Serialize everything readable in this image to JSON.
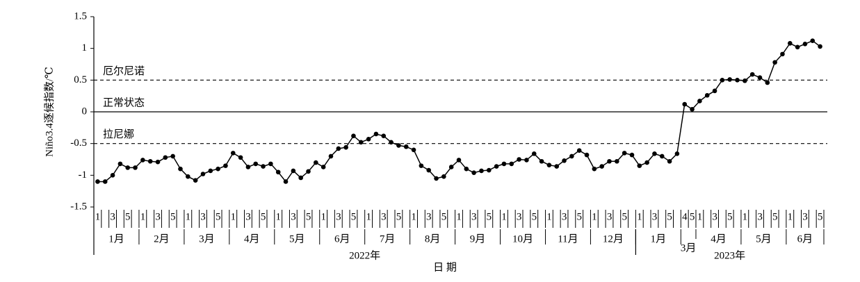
{
  "chart_data": {
    "type": "line",
    "y_label": "Niño3.4逐候指数/℃",
    "x_label": "日 期",
    "ylim": [
      -1.5,
      1.5
    ],
    "yticks": [
      1.5,
      1,
      0.5,
      0,
      -0.5,
      -1,
      -1.5
    ],
    "color": "#000000",
    "reference_lines": [
      {
        "value": 0.5,
        "label": "厄尔尼诺",
        "style": "dashed"
      },
      {
        "value": 0,
        "label": "正常状态",
        "style": "solid"
      },
      {
        "value": -0.5,
        "label": "拉尼娜",
        "style": "dashed"
      }
    ],
    "years": [
      {
        "label": "2022年",
        "months": [
          {
            "label": "1月",
            "weeks": [
              "1",
              null,
              "3",
              null,
              "5",
              null
            ]
          },
          {
            "label": "2月",
            "weeks": [
              "1",
              null,
              "3",
              null,
              "5",
              null
            ]
          },
          {
            "label": "3月",
            "weeks": [
              "1",
              null,
              "3",
              null,
              "5",
              null
            ]
          },
          {
            "label": "4月",
            "weeks": [
              "1",
              null,
              "3",
              null,
              "5",
              null
            ]
          },
          {
            "label": "5月",
            "weeks": [
              "1",
              null,
              "3",
              null,
              "5",
              null
            ]
          },
          {
            "label": "6月",
            "weeks": [
              "1",
              null,
              "3",
              null,
              "5",
              null
            ]
          },
          {
            "label": "7月",
            "weeks": [
              "1",
              null,
              "3",
              null,
              "5",
              null
            ]
          },
          {
            "label": "8月",
            "weeks": [
              "1",
              null,
              "3",
              null,
              "5",
              null
            ]
          },
          {
            "label": "9月",
            "weeks": [
              "1",
              null,
              "3",
              null,
              "5",
              null
            ]
          },
          {
            "label": "10月",
            "weeks": [
              "1",
              null,
              "3",
              null,
              "5",
              null
            ]
          },
          {
            "label": "11月",
            "weeks": [
              "1",
              null,
              "3",
              null,
              "5",
              null
            ]
          },
          {
            "label": "12月",
            "weeks": [
              "1",
              null,
              "3",
              null,
              "5",
              null
            ]
          }
        ]
      },
      {
        "label": "2023年",
        "months": [
          {
            "label": "1月",
            "weeks": [
              "1",
              null,
              "3",
              null,
              "5",
              null
            ]
          },
          {
            "label": "3月",
            "weeks": [
              "4",
              "5"
            ]
          },
          {
            "label": "4月",
            "weeks": [
              "1",
              null,
              "3",
              null,
              "5",
              null
            ]
          },
          {
            "label": "5月",
            "weeks": [
              "1",
              null,
              "3",
              null,
              "5",
              null
            ]
          },
          {
            "label": "6月",
            "weeks": [
              "1",
              null,
              "3",
              null,
              "5"
            ]
          }
        ]
      }
    ],
    "values": [
      -1.1,
      -1.1,
      -1.0,
      -0.82,
      -0.88,
      -0.88,
      -0.76,
      -0.78,
      -0.79,
      -0.72,
      -0.7,
      -0.9,
      -1.02,
      -1.08,
      -0.98,
      -0.93,
      -0.9,
      -0.85,
      -0.65,
      -0.72,
      -0.87,
      -0.82,
      -0.86,
      -0.82,
      -0.95,
      -1.1,
      -0.93,
      -1.04,
      -0.94,
      -0.8,
      -0.87,
      -0.7,
      -0.58,
      -0.56,
      -0.38,
      -0.48,
      -0.43,
      -0.35,
      -0.38,
      -0.48,
      -0.53,
      -0.55,
      -0.6,
      -0.85,
      -0.92,
      -1.05,
      -1.02,
      -0.87,
      -0.76,
      -0.9,
      -0.96,
      -0.93,
      -0.92,
      -0.86,
      -0.82,
      -0.82,
      -0.75,
      -0.76,
      -0.66,
      -0.78,
      -0.84,
      -0.86,
      -0.77,
      -0.7,
      -0.61,
      -0.68,
      -0.9,
      -0.86,
      -0.78,
      -0.78,
      -0.65,
      -0.68,
      -0.85,
      -0.8,
      -0.66,
      -0.7,
      -0.78,
      -0.66,
      0.12,
      0.04,
      0.17,
      0.26,
      0.33,
      0.5,
      0.51,
      0.5,
      0.49,
      0.59,
      0.54,
      0.46,
      0.78,
      0.91,
      1.08,
      1.02,
      1.07,
      1.12,
      1.03
    ]
  }
}
